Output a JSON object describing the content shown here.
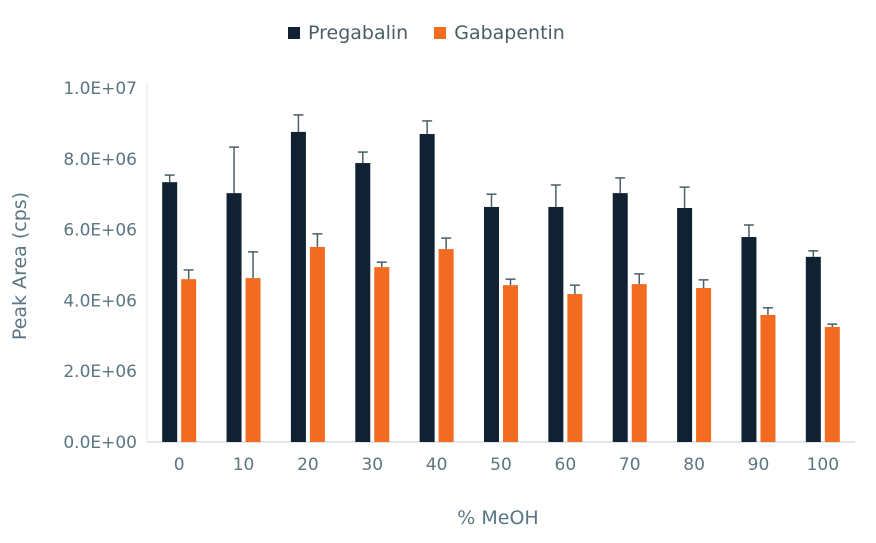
{
  "chart_data": {
    "type": "bar",
    "title": "",
    "xlabel": "% MeOH",
    "ylabel": "Peak Area (cps)",
    "ylim": [
      0,
      10000000
    ],
    "yticks": [
      "0.0E+00",
      "2.0E+06",
      "4.0E+06",
      "6.0E+06",
      "8.0E+06",
      "1.0E+07"
    ],
    "categories": [
      "0",
      "10",
      "20",
      "30",
      "40",
      "50",
      "60",
      "70",
      "80",
      "90",
      "100"
    ],
    "legend_position": "top",
    "grid": false,
    "series": [
      {
        "name": "Pregabalin",
        "color": "#0f2133",
        "values": [
          7340000,
          7030000,
          8760000,
          7880000,
          8700000,
          6640000,
          6640000,
          7030000,
          6610000,
          5790000,
          5230000
        ],
        "errors": [
          200000,
          1300000,
          480000,
          310000,
          370000,
          360000,
          620000,
          430000,
          590000,
          340000,
          170000
        ]
      },
      {
        "name": "Gabapentin",
        "color": "#f26b21",
        "values": [
          4600000,
          4630000,
          5510000,
          4940000,
          5450000,
          4430000,
          4180000,
          4460000,
          4350000,
          3590000,
          3250000
        ],
        "errors": [
          260000,
          740000,
          370000,
          140000,
          310000,
          170000,
          250000,
          290000,
          230000,
          200000,
          80000
        ]
      }
    ]
  }
}
